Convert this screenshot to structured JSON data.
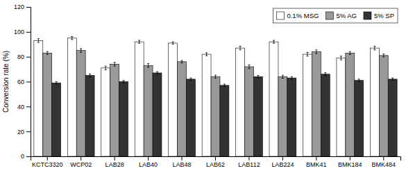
{
  "chart_data": {
    "type": "bar",
    "y_label": "Conversion rate (%)",
    "categories": [
      "KCTC3320",
      "WCP02",
      "LAB28",
      "LAB40",
      "LAB48",
      "LAB62",
      "LAB112",
      "LAB224",
      "BMK41",
      "BMK184",
      "BMK484"
    ],
    "series": [
      {
        "name": "0.1% MSG",
        "color": "#ffffff",
        "values": [
          93,
          95,
          71,
          92,
          91,
          82,
          87,
          92,
          82,
          79,
          87
        ],
        "errors": [
          1.5,
          1.2,
          1.5,
          1.2,
          1.0,
          1.2,
          1.5,
          1.2,
          1.5,
          1.5,
          1.5
        ]
      },
      {
        "name": "5% AG",
        "color": "#999999",
        "values": [
          83,
          85,
          74,
          73,
          76,
          64,
          72,
          64,
          84,
          83,
          81
        ],
        "errors": [
          1.2,
          1.5,
          1.5,
          1.5,
          1.0,
          1.2,
          1.5,
          1.2,
          1.5,
          1.2,
          1.2
        ]
      },
      {
        "name": "5% SP",
        "color": "#333333",
        "values": [
          59,
          65,
          60,
          67,
          62,
          57,
          64,
          63,
          66,
          61,
          62
        ],
        "errors": [
          1.0,
          1.2,
          1.0,
          1.0,
          1.0,
          1.0,
          1.0,
          1.0,
          1.2,
          1.0,
          1.0
        ]
      }
    ],
    "ylim": [
      0,
      120
    ],
    "yticks": [
      0,
      20,
      40,
      60,
      80,
      100,
      120
    ],
    "grid": false,
    "legend": "upper right"
  }
}
